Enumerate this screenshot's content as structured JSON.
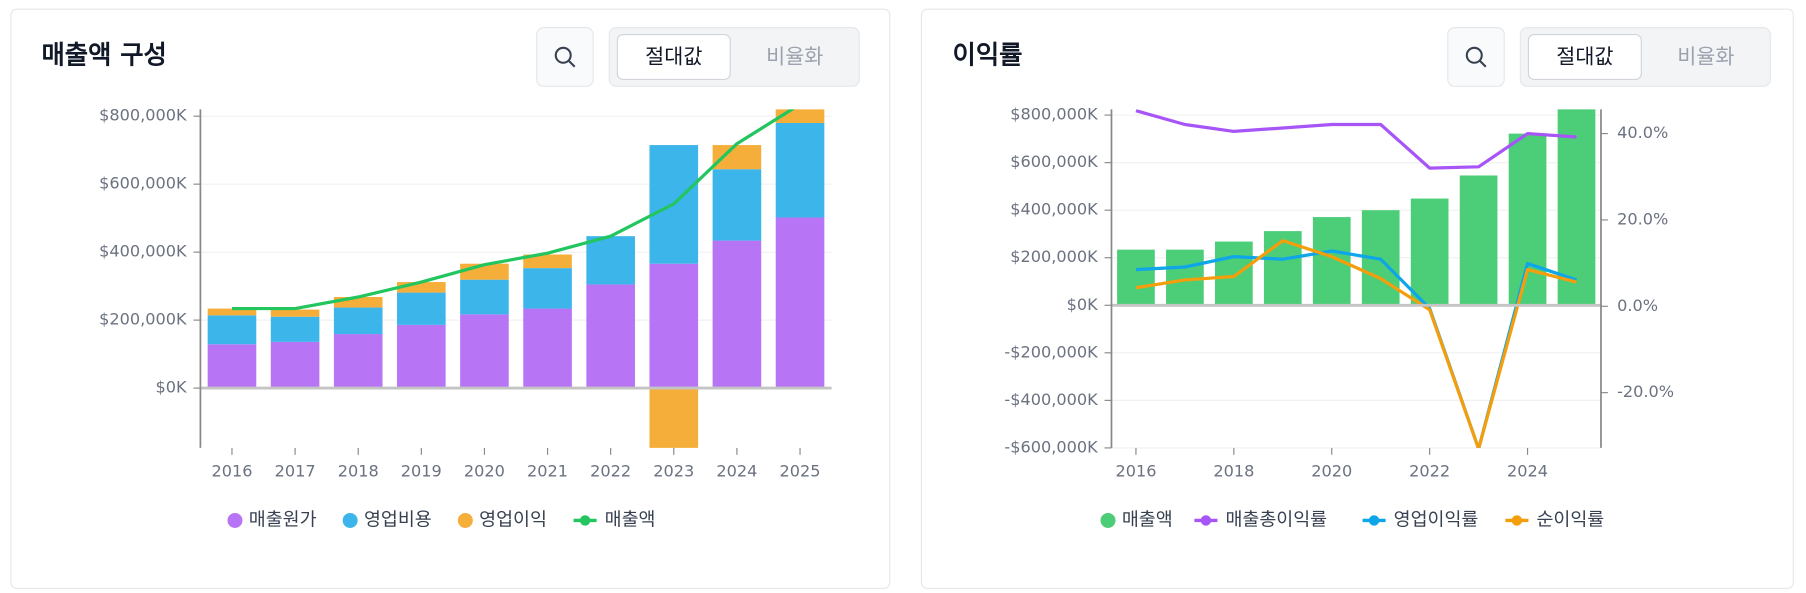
{
  "chart_data": [
    {
      "type": "bar",
      "stacked": true,
      "title": "매출액 구성",
      "toggle": [
        "절대값",
        "비율화"
      ],
      "categories": [
        "2016",
        "2017",
        "2018",
        "2019",
        "2020",
        "2021",
        "2022",
        "2023",
        "2024",
        "2025"
      ],
      "series": [
        {
          "name": "매출원가",
          "color": "#b775f5",
          "values": [
            129000,
            136000,
            159000,
            186000,
            217000,
            234000,
            305000,
            366000,
            434000,
            502000
          ]
        },
        {
          "name": "영업비용",
          "color": "#3bb5ea",
          "values": [
            85000,
            74000,
            78000,
            95000,
            102000,
            119000,
            142000,
            349000,
            210000,
            278000
          ]
        },
        {
          "name": "영업이익",
          "color": "#f6ae3a",
          "values": [
            20000,
            21000,
            31000,
            31000,
            47000,
            40000,
            -3000,
            -180000,
            71000,
            70000
          ]
        },
        {
          "name": "매출액",
          "color": "#22c55e",
          "type": "line",
          "values": [
            234000,
            234000,
            268000,
            312000,
            363000,
            397000,
            447000,
            542000,
            719000,
            835000
          ]
        }
      ],
      "ylim": [
        -176000,
        820000
      ],
      "yticks": [
        {
          "value": 0,
          "label": "$0K"
        },
        {
          "value": 200000,
          "label": "$200,000K"
        },
        {
          "value": 400000,
          "label": "$400,000K"
        },
        {
          "value": 600000,
          "label": "$600,000K"
        },
        {
          "value": 800000,
          "label": "$800,000K"
        }
      ],
      "grid": true
    },
    {
      "type": "bar",
      "stacked": false,
      "title": "이익률",
      "toggle": [
        "절대값",
        "비율화"
      ],
      "categories": [
        "2016",
        null,
        "2018",
        null,
        "2020",
        null,
        "2022",
        null,
        "2024",
        null
      ],
      "series": [
        {
          "name": "매출액",
          "color": "#4ccd78",
          "values": [
            234000,
            234000,
            268000,
            312000,
            371000,
            400000,
            449000,
            546000,
            722000,
            835000
          ]
        },
        {
          "name": "매출총이익률",
          "color": "#a855f7",
          "type": "line",
          "axis": "y2",
          "values": [
            45.3,
            42.1,
            40.5,
            41.3,
            42.1,
            42.1,
            32.0,
            32.3,
            40.0,
            39.2
          ]
        },
        {
          "name": "영업이익률",
          "color": "#0ea5e9",
          "type": "line",
          "axis": "y2",
          "values": [
            8.5,
            9.1,
            11.5,
            10.9,
            12.8,
            10.9,
            -0.5,
            -33,
            9.9,
            6.1
          ]
        },
        {
          "name": "순이익률",
          "color": "#f59e0b",
          "type": "line",
          "axis": "y2",
          "values": [
            4.3,
            6.1,
            6.9,
            15.2,
            11.5,
            6.4,
            -0.8,
            -33,
            8.5,
            5.6
          ]
        }
      ],
      "ylim": [
        -600000,
        824000
      ],
      "yticks": [
        {
          "value": -600000,
          "label": "-$600,000K"
        },
        {
          "value": -400000,
          "label": "-$400,000K"
        },
        {
          "value": -200000,
          "label": "-$200,000K"
        },
        {
          "value": 0,
          "label": "$0K"
        },
        {
          "value": 200000,
          "label": "$200,000K"
        },
        {
          "value": 400000,
          "label": "$400,000K"
        },
        {
          "value": 600000,
          "label": "$600,000K"
        },
        {
          "value": 800000,
          "label": "$800,000K"
        }
      ],
      "y2lim": [
        -32.8,
        45.6
      ],
      "y2ticks": [
        {
          "value": -20,
          "label": "-20.0%"
        },
        {
          "value": 0,
          "label": "0.0%"
        },
        {
          "value": 20,
          "label": "20.0%"
        },
        {
          "value": 40,
          "label": "40.0%"
        }
      ],
      "grid": true
    }
  ]
}
